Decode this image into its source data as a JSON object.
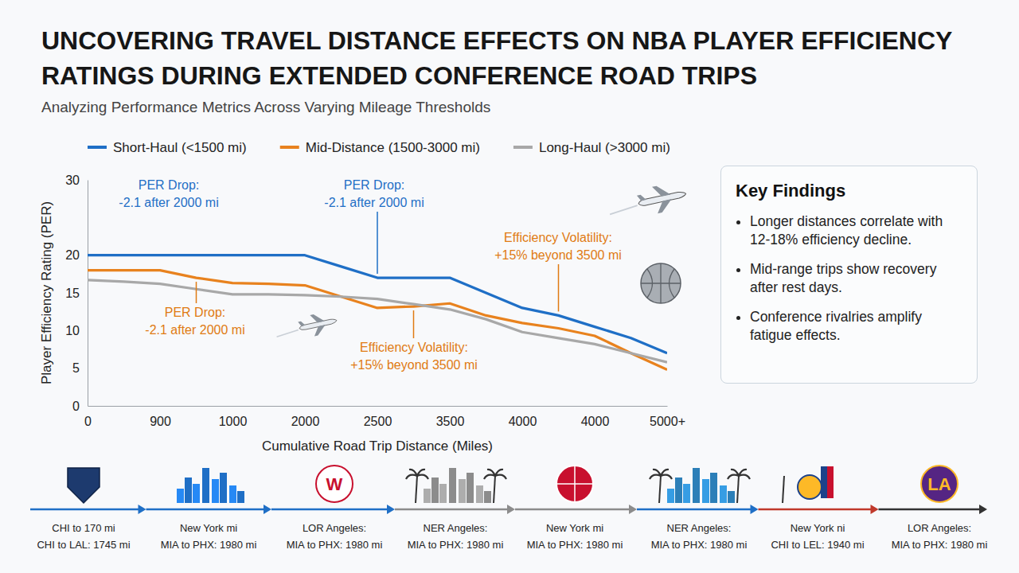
{
  "chart_data": {
    "type": "line",
    "title": "UNCOVERING TRAVEL DISTANCE EFFECTS ON NBA PLAYER EFFICIENCY RATINGS DURING EXTENDED CONFERENCE ROAD TRIPS",
    "subtitle": "Analyzing Performance Metrics Across Varying Mileage Thresholds",
    "x_label": "Cumulative Road Trip Distance (Miles)",
    "y_label": "Player Efficiency Rating (PER)",
    "categories": [
      "0",
      null,
      "900",
      null,
      "1000",
      null,
      "2000",
      null,
      "2500",
      null,
      "3500",
      null,
      "4000",
      null,
      "4000",
      null,
      "5000+"
    ],
    "series": [
      {
        "name": "Short-Haul (<1500 mi)",
        "color": "#1f6fc6",
        "values": [
          20,
          20,
          20,
          20,
          20,
          20,
          20,
          18.5,
          17,
          17,
          17,
          15,
          13,
          12,
          10.5,
          9,
          7
        ]
      },
      {
        "name": "Mid-Distance (1500-3000 mi)",
        "color": "#e8821e",
        "values": [
          18,
          18,
          18,
          17,
          16.3,
          16.2,
          16,
          14.5,
          13,
          13.2,
          13.6,
          12,
          11,
          10.3,
          9.3,
          7,
          4.8
        ]
      },
      {
        "name": "Long-Haul (>3000 mi)",
        "color": "#a8a8a8",
        "values": [
          16.7,
          16.5,
          16.2,
          15.5,
          14.8,
          14.8,
          14.7,
          14.5,
          14.2,
          13.5,
          12.8,
          11.5,
          9.8,
          9,
          8.2,
          7,
          5.8
        ]
      }
    ],
    "ylim": [
      0,
      30
    ],
    "yticks": [
      0,
      5,
      10,
      15,
      20,
      30
    ],
    "grid": false,
    "legend": "top",
    "annotations": [
      [
        "PER Drop:",
        "-2.1 after 2000 mi"
      ],
      [
        "PER Drop:",
        "-2.1 after 2000 mi"
      ],
      [
        "PER Drop:",
        "-2.1 after 2000 mi"
      ],
      [
        "Efficiency Volatility:",
        "+15% beyond 3500 mi"
      ],
      [
        "Efficiency Volatility:",
        "+15% beyond 3500 mi"
      ]
    ]
  },
  "key_findings": {
    "title": "Key Findings",
    "items": [
      "Longer distances correlate with 12-18% efficiency decline.",
      "Mid-range trips show recovery after rest days.",
      "Conference rivalries amplify fatigue effects."
    ]
  },
  "route_timeline": [
    {
      "city": "CHI to 170 mi",
      "route": "CHI to LAL: 1745 mi"
    },
    {
      "city": "New York mi",
      "route": "MIA to PHX: 1980 mi"
    },
    {
      "city": "LOR Angeles:",
      "route": "MIA to PHX: 1980 mi",
      "logo": "W"
    },
    {
      "city": "NER Angeles:",
      "route": "MIA to PHX: 1980 mi"
    },
    {
      "city": "New York mi",
      "route": "MIA to PHX: 1980 mi"
    },
    {
      "city": "NER Angeles:",
      "route": "MIA to PHX: 1980 mi"
    },
    {
      "city": "New York ni",
      "route": "CHI to LEL: 1940 mi"
    },
    {
      "city": "LOR Angeles:",
      "route": "MIA to PHX: 1980 mi",
      "logo": "LA"
    }
  ]
}
